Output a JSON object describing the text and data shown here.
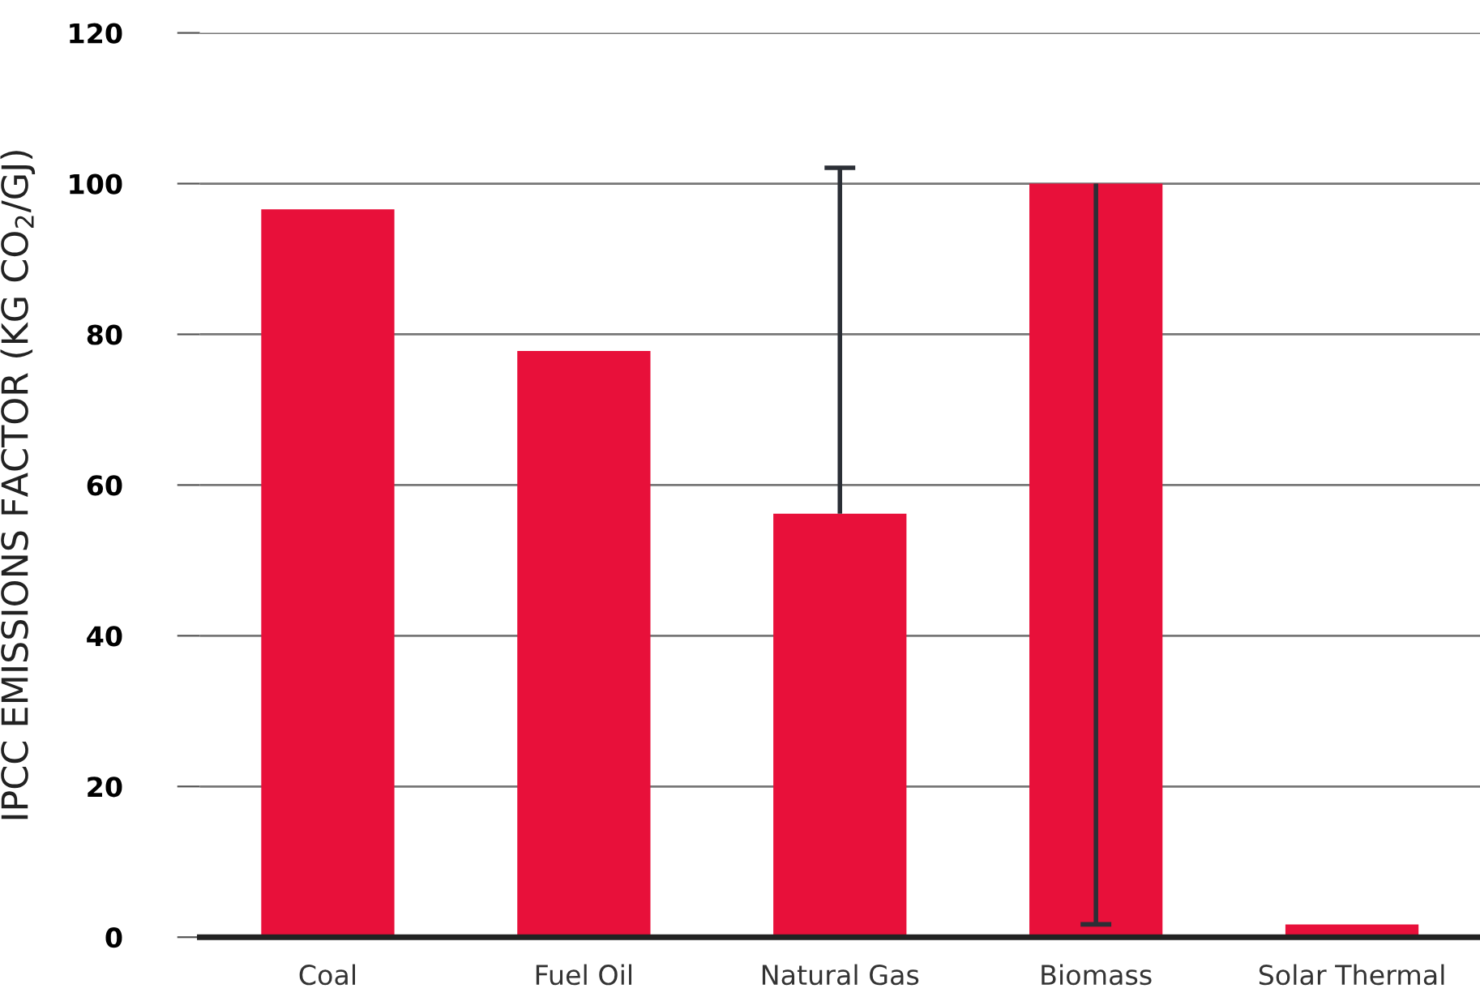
{
  "chart_data": {
    "type": "bar",
    "ylabel": "IPCC EMISSIONS FACTOR (KG CO$_{2}$/GJ)",
    "categories": [
      "Coal",
      "Fuel Oil",
      "Natural Gas",
      "Biomass",
      "Solar Thermal"
    ],
    "values": [
      96.6,
      77.8,
      56.2,
      100,
      1.7
    ],
    "errors": [
      null,
      null,
      [
        56.2,
        102.1
      ],
      [
        1.7,
        100
      ],
      null
    ],
    "color": "#e8103a",
    "ylim": [
      0,
      120
    ],
    "yticks": [
      0,
      20,
      40,
      60,
      80,
      100,
      120
    ],
    "grid": "y"
  }
}
